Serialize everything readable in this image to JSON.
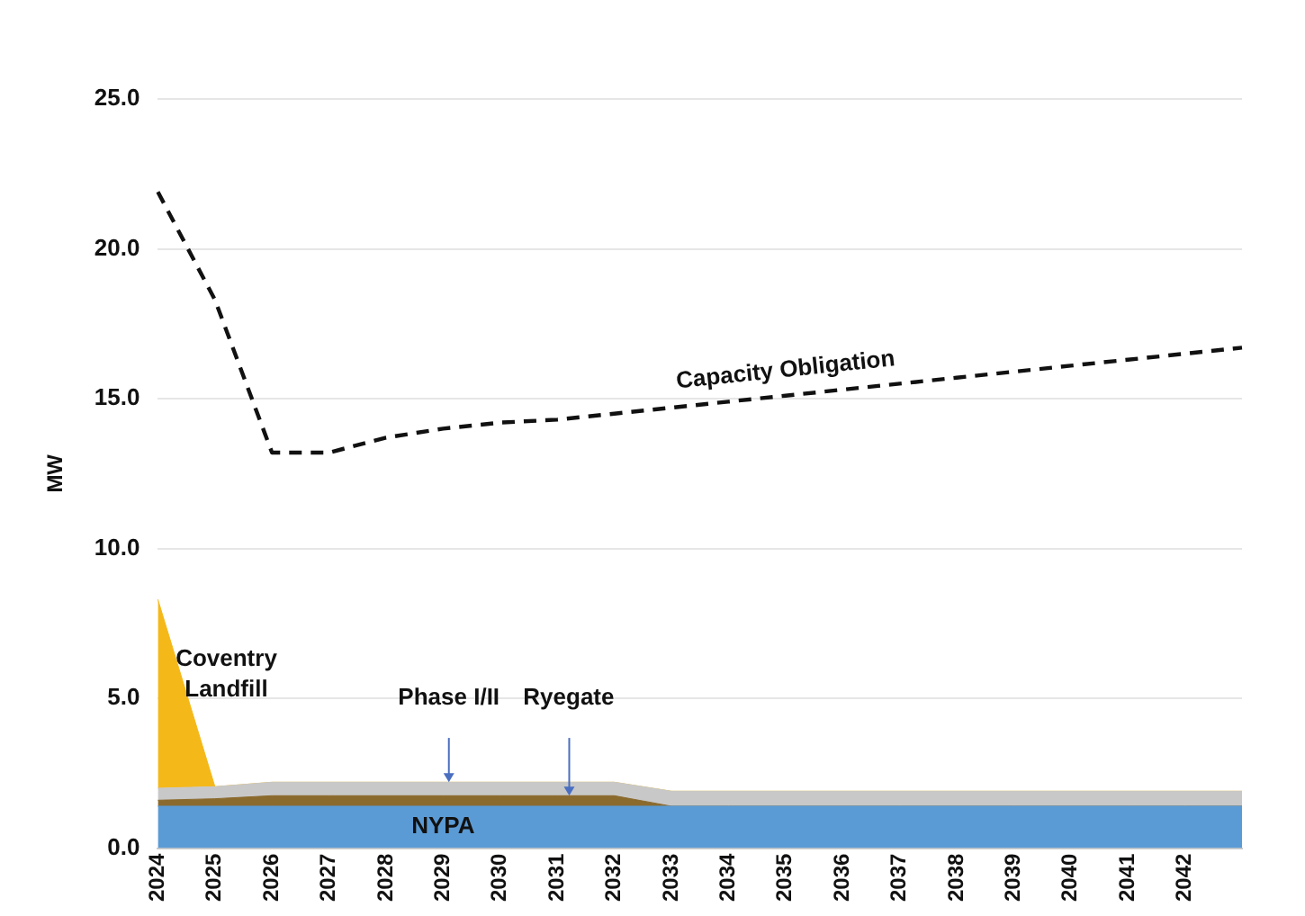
{
  "chart_data": {
    "type": "area",
    "stacked": true,
    "ylabel": "MW",
    "categories": [
      "2024",
      "2025",
      "2026",
      "2027",
      "2028",
      "2029",
      "2030",
      "2031",
      "2032",
      "2033",
      "2034",
      "2035",
      "2036",
      "2037",
      "2038",
      "2039",
      "2040",
      "2041",
      "2042",
      null
    ],
    "series": [
      {
        "name": "NYPA",
        "type": "area",
        "color": "#5b9bd5",
        "values": [
          1.4,
          1.4,
          1.4,
          1.4,
          1.4,
          1.4,
          1.4,
          1.4,
          1.4,
          1.4,
          1.4,
          1.4,
          1.4,
          1.4,
          1.4,
          1.4,
          1.4,
          1.4,
          1.4,
          1.4
        ]
      },
      {
        "name": "Ryegate",
        "type": "area",
        "color": "#8b6a2e",
        "values": [
          0.2,
          0.25,
          0.35,
          0.35,
          0.35,
          0.35,
          0.35,
          0.35,
          0.35,
          0,
          0,
          0,
          0,
          0,
          0,
          0,
          0,
          0,
          0,
          0
        ]
      },
      {
        "name": "Phase I/II",
        "type": "area",
        "color": "#c8c8c8",
        "values": [
          0.4,
          0.4,
          0.45,
          0.45,
          0.45,
          0.45,
          0.45,
          0.45,
          0.45,
          0.5,
          0.5,
          0.5,
          0.5,
          0.5,
          0.5,
          0.5,
          0.5,
          0.5,
          0.5,
          0.5
        ]
      },
      {
        "name": "Coventry Landfill",
        "type": "area",
        "color": "#f5b819",
        "values": [
          6.3,
          0,
          0,
          0,
          0,
          0,
          0,
          0,
          0,
          0,
          0,
          0,
          0,
          0,
          0,
          0,
          0,
          0,
          0,
          0
        ]
      },
      {
        "name": "Capacity Obligation",
        "type": "line",
        "color": "#111111",
        "line_style": "dashed",
        "marker": "none",
        "values": [
          21.9,
          18.3,
          13.2,
          13.2,
          13.7,
          14.0,
          14.2,
          14.3,
          14.5,
          14.7,
          14.9,
          15.1,
          15.3,
          15.5,
          15.7,
          15.9,
          16.1,
          16.3,
          16.5,
          16.7
        ]
      }
    ],
    "ylim": [
      0,
      25
    ],
    "yticks": [
      {
        "value": 0,
        "label": "0.0"
      },
      {
        "value": 5,
        "label": "5.0"
      },
      {
        "value": 10,
        "label": "10.0"
      },
      {
        "value": 15,
        "label": "15.0"
      },
      {
        "value": 20,
        "label": "20.0"
      },
      {
        "value": 25,
        "label": "25.0"
      }
    ],
    "grid": "y",
    "legend": false
  }
}
